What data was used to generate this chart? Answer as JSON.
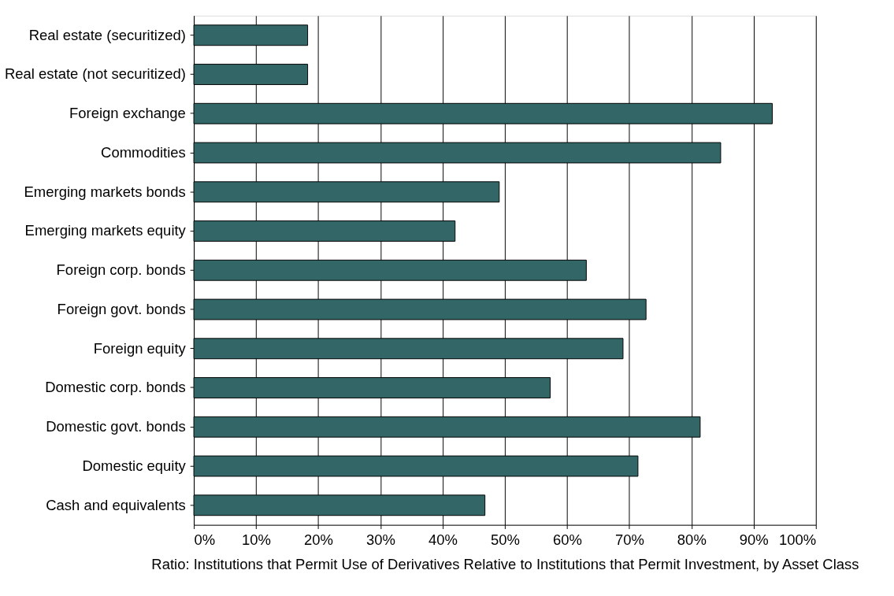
{
  "chart_data": {
    "type": "bar",
    "orientation": "horizontal",
    "xlabel": "Ratio: Institutions that Permit Use of Derivatives Relative to Institutions that Permit Investment, by Asset Class",
    "categories": [
      "Real estate (securitized)",
      "Real estate (not securitized)",
      "Foreign exchange",
      "Commodities",
      "Emerging markets bonds",
      "Emerging markets equity",
      "Foreign corp. bonds",
      "Foreign govt. bonds",
      "Foreign equity",
      "Domestic corp. bonds",
      "Domestic govt. bonds",
      "Domestic equity",
      "Cash and equivalents"
    ],
    "values": [
      18.3,
      18.3,
      93.0,
      84.7,
      49.1,
      42.0,
      63.1,
      72.7,
      69.0,
      57.3,
      81.4,
      71.4,
      46.8
    ],
    "color": "#336666",
    "xlim": [
      0,
      100
    ],
    "xticks": [
      {
        "value": 0,
        "label": "0%"
      },
      {
        "value": 10,
        "label": "10%"
      },
      {
        "value": 20,
        "label": "20%"
      },
      {
        "value": 30,
        "label": "30%"
      },
      {
        "value": 40,
        "label": "40%"
      },
      {
        "value": 50,
        "label": "50%"
      },
      {
        "value": 60,
        "label": "60%"
      },
      {
        "value": 70,
        "label": "70%"
      },
      {
        "value": 80,
        "label": "80%"
      },
      {
        "value": 90,
        "label": "90%"
      },
      {
        "value": 100,
        "label": "100%"
      }
    ],
    "grid": "x"
  }
}
